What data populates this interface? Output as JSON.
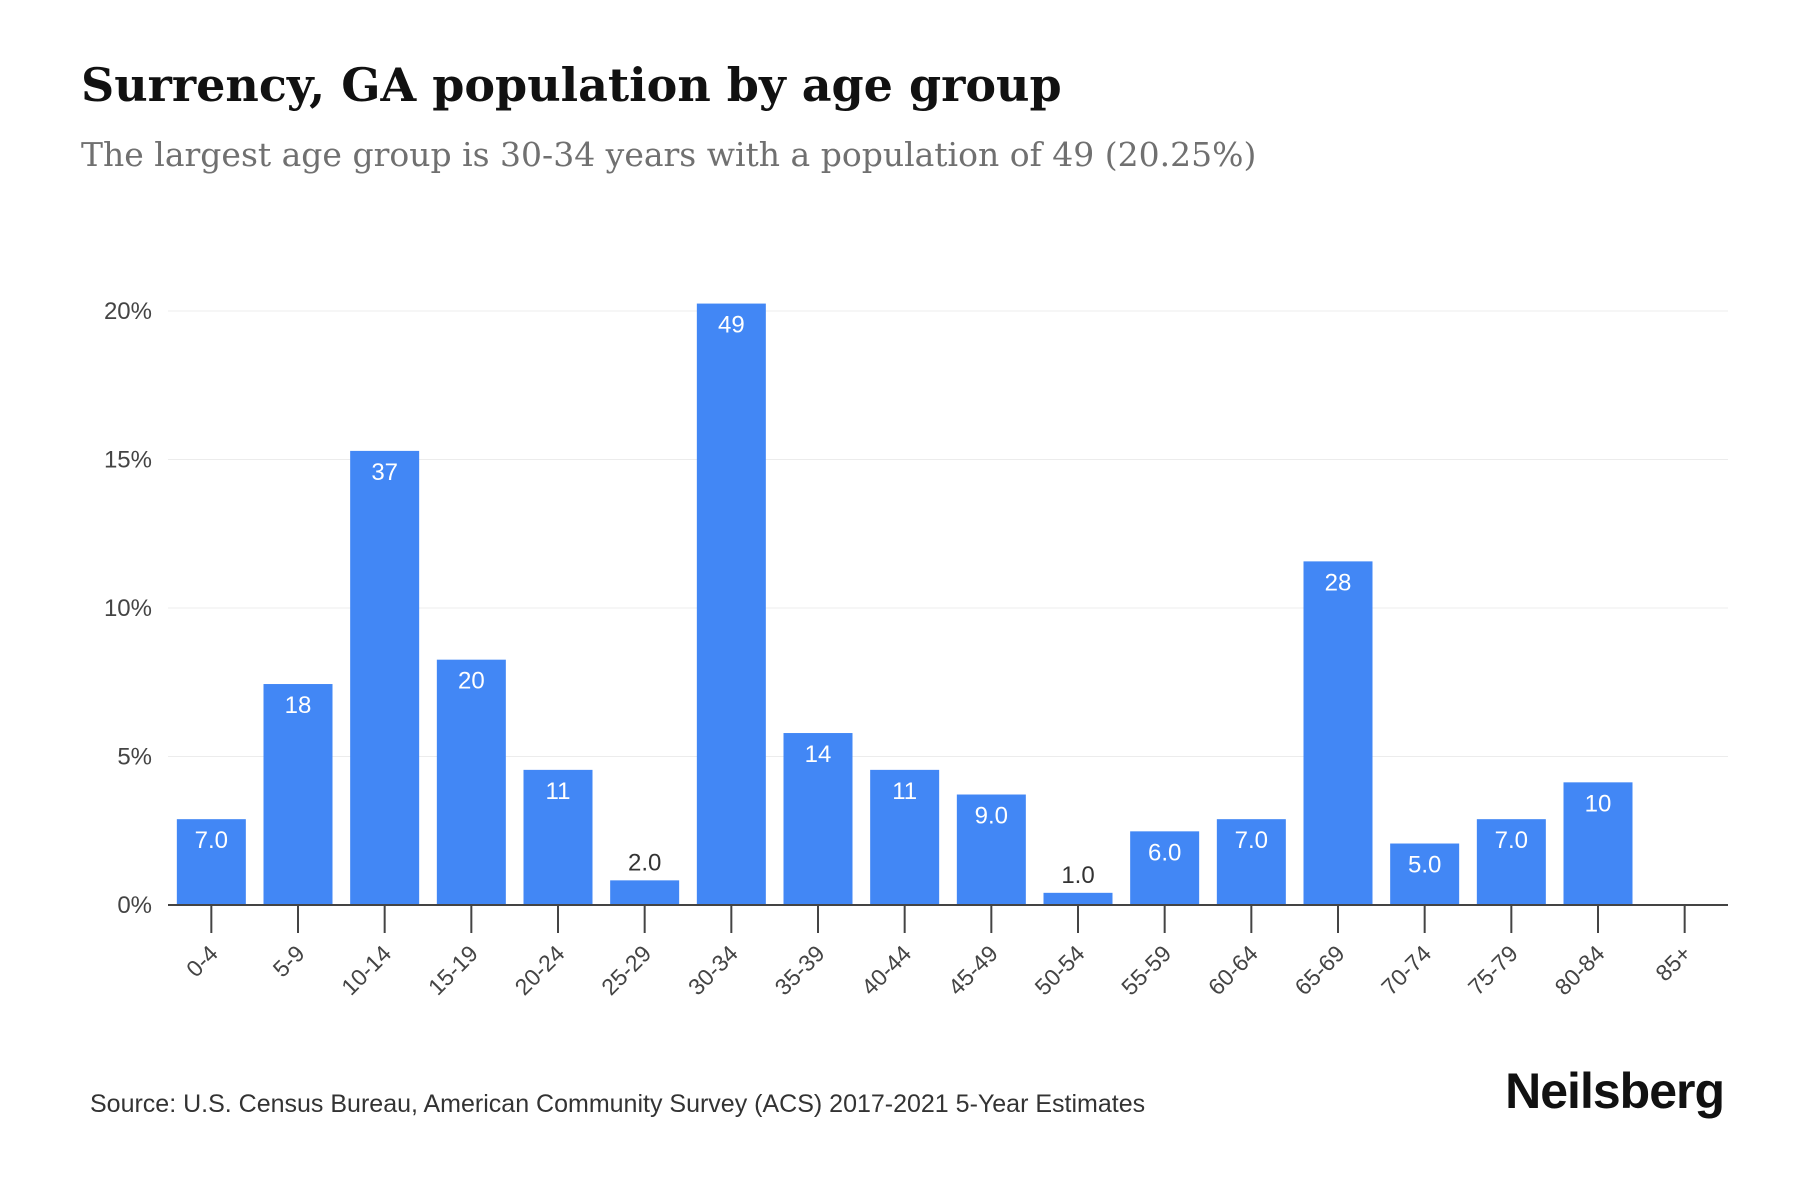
{
  "chart_data": {
    "type": "bar",
    "title": "Surrency, GA population by age group",
    "subtitle": "The largest age group is 30-34 years with a population of 49 (20.25%)",
    "categories": [
      "0-4",
      "5-9",
      "10-14",
      "15-19",
      "20-24",
      "25-29",
      "30-34",
      "35-39",
      "40-44",
      "45-49",
      "50-54",
      "55-59",
      "60-64",
      "65-69",
      "70-74",
      "75-79",
      "80-84",
      "85+"
    ],
    "values": [
      2.89,
      7.44,
      15.29,
      8.26,
      4.55,
      0.83,
      20.25,
      5.79,
      4.55,
      3.72,
      0.41,
      2.48,
      2.89,
      11.57,
      2.07,
      2.89,
      4.13,
      0
    ],
    "data_labels": [
      "7.0",
      "18",
      "37",
      "20",
      "11",
      "2.0",
      "49",
      "14",
      "11",
      "9.0",
      "1.0",
      "6.0",
      "7.0",
      "28",
      "5.0",
      "7.0",
      "10",
      ""
    ],
    "ylim": [
      0,
      20
    ],
    "yticks": [
      0,
      5,
      10,
      15,
      20
    ],
    "ytick_labels": [
      "0%",
      "5%",
      "10%",
      "15%",
      "20%"
    ],
    "xlabel": "",
    "ylabel": "",
    "grid": true,
    "bar_color": "#4287f5"
  },
  "footer": {
    "source": "Source: U.S. Census Bureau, American Community Survey (ACS) 2017-2021 5-Year Estimates",
    "brand": "Neilsberg"
  }
}
